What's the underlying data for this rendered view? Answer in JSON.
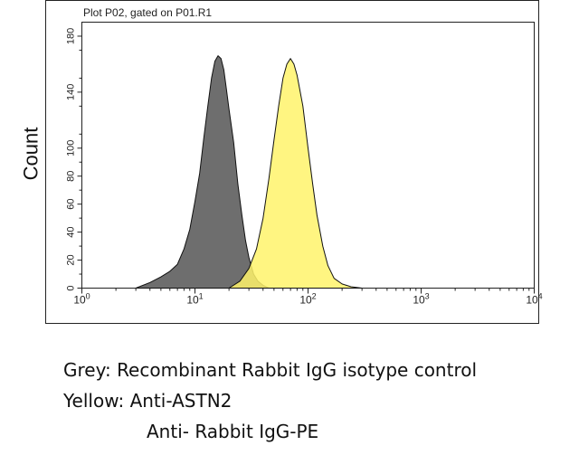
{
  "y_axis_title": "Count",
  "chart_data": {
    "type": "area",
    "title": "Plot P02, gated on P01.R1",
    "xscale": "log",
    "xlim": [
      1,
      10000
    ],
    "ylim": [
      0,
      190
    ],
    "xticks": [
      {
        "value": 1,
        "base": "10",
        "exp": "0"
      },
      {
        "value": 10,
        "base": "10",
        "exp": "1"
      },
      {
        "value": 100,
        "base": "10",
        "exp": "2"
      },
      {
        "value": 1000,
        "base": "10",
        "exp": "3"
      },
      {
        "value": 10000,
        "base": "10",
        "exp": "4"
      }
    ],
    "yticks": [
      "0",
      "20",
      "40",
      "60",
      "80",
      "100",
      "140",
      "180"
    ],
    "ytick_values": [
      0,
      20,
      40,
      60,
      80,
      100,
      140,
      180
    ],
    "grid": false,
    "series": [
      {
        "color": "#6e6e6e",
        "x": [
          3,
          4,
          5,
          6,
          7,
          8,
          9,
          10,
          11,
          12,
          13,
          14,
          15,
          16,
          17,
          18,
          19,
          20,
          22,
          24,
          26,
          28,
          30,
          33,
          36,
          40,
          45
        ],
        "y": [
          0,
          4,
          8,
          12,
          17,
          28,
          42,
          62,
          82,
          108,
          130,
          150,
          162,
          166,
          164,
          156,
          142,
          128,
          104,
          74,
          52,
          34,
          22,
          10,
          5,
          2,
          0
        ]
      },
      {
        "color": "#fff36b",
        "x": [
          20,
          25,
          30,
          35,
          40,
          45,
          50,
          55,
          60,
          65,
          70,
          75,
          80,
          90,
          100,
          110,
          120,
          135,
          150,
          170,
          200,
          240,
          300
        ],
        "y": [
          0,
          5,
          14,
          28,
          50,
          78,
          106,
          130,
          150,
          160,
          164,
          160,
          152,
          130,
          100,
          74,
          52,
          30,
          16,
          7,
          3,
          1,
          0
        ]
      }
    ]
  },
  "legend": {
    "line1": "Grey: Recombinant Rabbit IgG isotype control",
    "line2": "Yellow: Anti-ASTN2",
    "line3": "Anti- Rabbit IgG-PE"
  }
}
